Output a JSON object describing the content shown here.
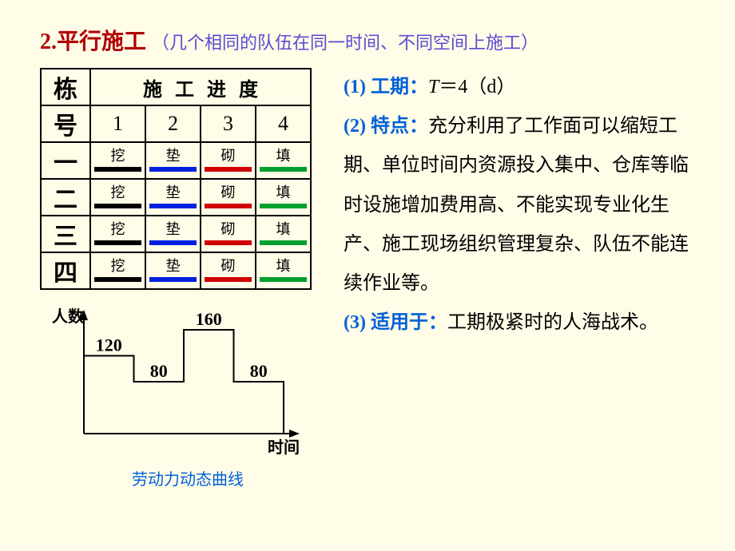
{
  "heading": {
    "num": "2.",
    "title": "平行施工",
    "subtitle": "（几个相同的队伍在同一时间、不同空间上施工）"
  },
  "table": {
    "row_header_top": "栋",
    "row_header_bottom": "号",
    "col_header": "施工进度",
    "cols": [
      "1",
      "2",
      "3",
      "4"
    ],
    "rows": [
      "一",
      "二",
      "三",
      "四"
    ],
    "tasks": [
      {
        "label": "挖",
        "color": "#000000"
      },
      {
        "label": "垫",
        "color": "#0020e0"
      },
      {
        "label": "砌",
        "color": "#d00000"
      },
      {
        "label": "填",
        "color": "#00a030"
      }
    ]
  },
  "chart": {
    "y_label": "人数",
    "x_label": "时间",
    "caption": "劳动力动态曲线",
    "values": [
      120,
      80,
      160,
      80
    ],
    "axis_color": "#000000",
    "line_color": "#000000",
    "label_fontsize": 20,
    "value_fontsize": 22
  },
  "points": {
    "p1_num": "(1) ",
    "p1_key": "工期：",
    "p1_formula_var": "T",
    "p1_formula_rest": "＝4（d）",
    "p2_num": "(2) ",
    "p2_key": "特点：",
    "p2_text": "充分利用了工作面可以缩短工期、单位时间内资源投入集中、仓库等临时设施增加费用高、不能实现专业化生产、施工现场组织管理复杂、队伍不能连续作业等。",
    "p3_num": "(3) ",
    "p3_key": "适用于：",
    "p3_text": "工期极紧时的人海战术。"
  }
}
